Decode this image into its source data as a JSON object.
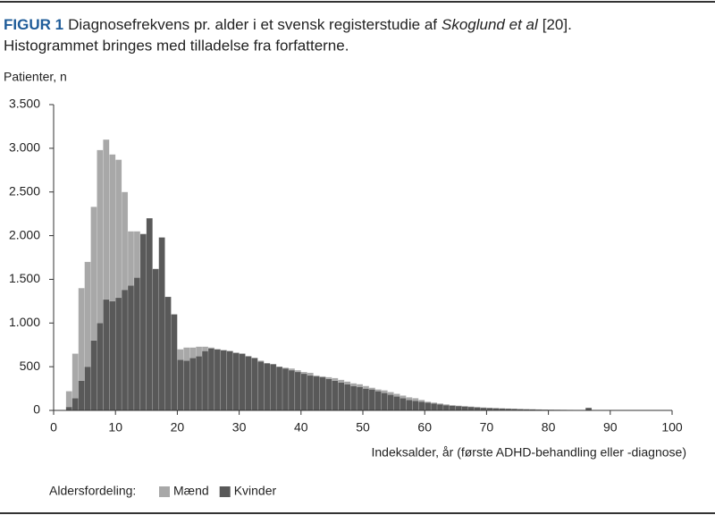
{
  "chart_data": {
    "type": "histogram",
    "title_label": "FIGUR 1",
    "title_parts": [
      "Diagnosefrekvens pr. alder i et svensk registerstudie af",
      "Skoglund et al",
      "[20]."
    ],
    "subtitle": "Histogrammet bringes med tilladelse fra forfatterne.",
    "y_label": "Patienter, n",
    "x_label": "Indeksalder, år (første ADHD-behandling eller -diagnose)",
    "legend_title": "Aldersfordeling:",
    "bins": [
      2,
      3,
      4,
      5,
      6,
      7,
      8,
      9,
      10,
      11,
      12,
      13,
      14,
      15,
      16,
      17,
      18,
      19,
      20,
      21,
      22,
      23,
      24,
      25,
      26,
      27,
      28,
      29,
      30,
      31,
      32,
      33,
      34,
      35,
      36,
      37,
      38,
      39,
      40,
      41,
      42,
      43,
      44,
      45,
      46,
      47,
      48,
      49,
      50,
      51,
      52,
      53,
      54,
      55,
      56,
      57,
      58,
      59,
      60,
      61,
      62,
      63,
      64,
      65,
      66,
      67,
      68,
      69,
      70,
      71,
      72,
      73,
      74,
      75,
      76,
      77,
      78,
      79,
      80,
      81,
      82,
      83,
      84,
      85,
      86,
      87,
      88,
      89,
      90
    ],
    "series": [
      {
        "name": "Mænd",
        "color": "#a8a8a8",
        "values": [
          220,
          650,
          1400,
          1700,
          2330,
          2980,
          3100,
          2930,
          2870,
          2500,
          2050,
          2050,
          1800,
          1600,
          1500,
          1300,
          1000,
          700,
          700,
          720,
          720,
          730,
          730,
          720,
          700,
          680,
          670,
          650,
          640,
          620,
          600,
          570,
          540,
          520,
          500,
          490,
          480,
          460,
          440,
          430,
          400,
          390,
          380,
          370,
          350,
          330,
          310,
          300,
          280,
          260,
          240,
          230,
          210,
          190,
          170,
          150,
          140,
          120,
          100,
          90,
          80,
          70,
          60,
          55,
          50,
          45,
          40,
          35,
          30,
          28,
          25,
          22,
          20,
          18,
          15,
          14,
          12,
          10,
          9,
          8,
          7,
          6,
          5,
          4,
          3,
          3,
          2,
          1
        ]
      },
      {
        "name": "Kvinder",
        "color": "#595959",
        "values": [
          40,
          140,
          340,
          500,
          800,
          1000,
          1270,
          1250,
          1290,
          1380,
          1430,
          1520,
          2020,
          2200,
          1620,
          1980,
          1300,
          1100,
          580,
          570,
          600,
          620,
          680,
          710,
          700,
          690,
          680,
          660,
          650,
          620,
          600,
          560,
          540,
          530,
          500,
          480,
          460,
          440,
          420,
          400,
          390,
          380,
          360,
          340,
          320,
          300,
          280,
          270,
          250,
          240,
          220,
          200,
          180,
          160,
          140,
          120,
          110,
          100,
          90,
          80,
          70,
          60,
          55,
          50,
          45,
          40,
          35,
          30,
          28,
          25,
          22,
          20,
          18,
          15,
          14,
          12,
          10,
          9,
          8,
          7,
          6,
          5,
          4,
          4,
          30,
          3,
          2,
          1
        ]
      }
    ],
    "xlim": [
      0,
      100
    ],
    "xticks": [
      0,
      10,
      20,
      30,
      40,
      50,
      60,
      70,
      80,
      90,
      100
    ],
    "ylim": [
      0,
      3500
    ],
    "yticks": [
      0,
      500,
      {
        "value": 1000,
        "label": "1.000"
      },
      {
        "value": 1500,
        "label": "1.500"
      },
      {
        "value": 2000,
        "label": "2.000"
      },
      {
        "value": 2500,
        "label": "2.500"
      },
      {
        "value": 3000,
        "label": "3.000"
      },
      {
        "value": 3500,
        "label": "3.500"
      }
    ],
    "grid": false
  }
}
